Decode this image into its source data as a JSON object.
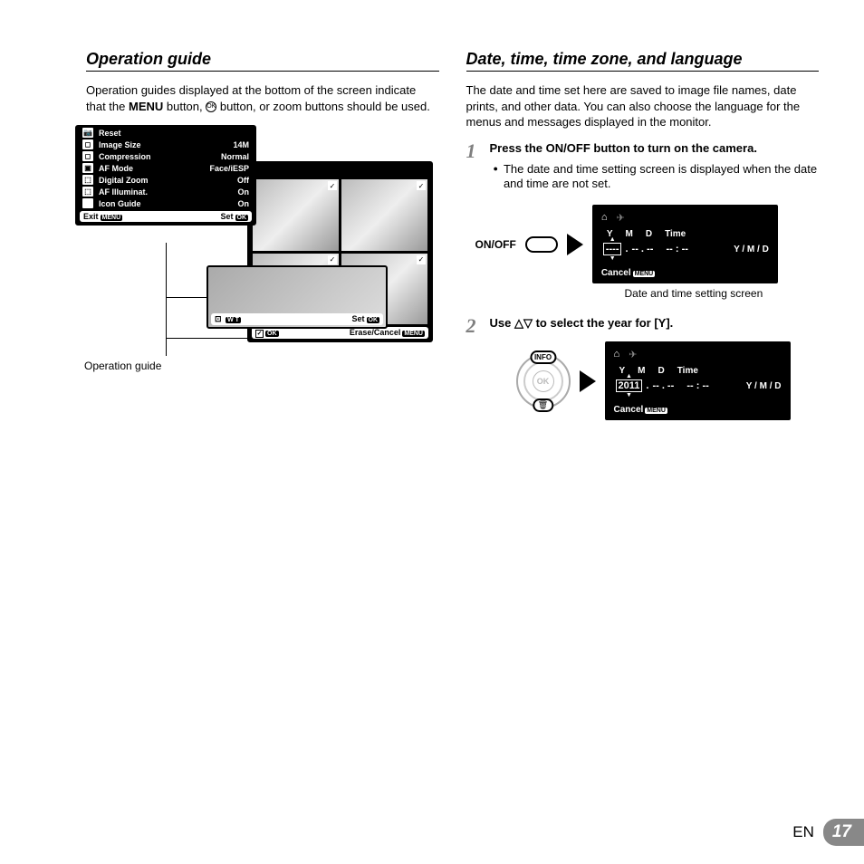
{
  "left": {
    "heading": "Operation guide",
    "intro_pre": "Operation guides displayed at the bottom of the screen indicate that the ",
    "menu_word": "MENU",
    "intro_mid": " button, ",
    "ok_glyph": "OK",
    "intro_post": " button, or zoom buttons should be used.",
    "menu": {
      "rows": [
        {
          "icon": "📷",
          "label": "Reset",
          "val": ""
        },
        {
          "icon": "◻",
          "label": "Image Size",
          "val": "14M"
        },
        {
          "icon": "◻",
          "label": "Compression",
          "val": "Normal"
        },
        {
          "icon": "▣",
          "label": "AF Mode",
          "val": "Face/iESP"
        },
        {
          "icon": "⬚",
          "label": "Digital Zoom",
          "val": "Off"
        },
        {
          "icon": "⬚",
          "label": "AF Illuminat.",
          "val": "On"
        },
        {
          "icon": "",
          "label": "Icon Guide",
          "val": "On"
        }
      ],
      "exit": "Exit",
      "set": "Set",
      "menu_tag": "MENU",
      "ok_tag": "OK"
    },
    "thumbs1": {
      "left_icon": "⊡",
      "wt": "W T",
      "set": "Set",
      "ok": "OK"
    },
    "thumbs2": {
      "ok_left": "OK",
      "erase": "Erase/Cancel",
      "menu": "MENU"
    },
    "caption": "Operation guide"
  },
  "right": {
    "heading": "Date, time, time zone, and language",
    "intro": "The date and time set here are saved to image file names, date prints, and other data. You can also choose the language for the menus and messages displayed in the monitor.",
    "step1": {
      "num": "1",
      "title_pre": "Press the ",
      "onoff": "ON/OFF",
      "title_post": " button to turn on the camera.",
      "bullet": "The date and time setting screen is displayed when the date and time are not set.",
      "onoff_label": "ON/OFF",
      "screen": {
        "y": "Y",
        "m": "M",
        "d": "D",
        "time": "Time",
        "year": "----",
        "md": "-- . --",
        "hm": "-- : --",
        "fmt": "Y / M / D",
        "cancel": "Cancel",
        "menu": "MENU"
      },
      "caption": "Date and time setting screen"
    },
    "step2": {
      "num": "2",
      "title_pre": "Use ",
      "arrows": "△▽",
      "title_post": " to select the year for [Y].",
      "info": "INFO",
      "ok": "OK",
      "trash": "🗑",
      "screen": {
        "y": "Y",
        "m": "M",
        "d": "D",
        "time": "Time",
        "year": "2011",
        "md": "-- . --",
        "hm": "-- : --",
        "fmt": "Y / M / D",
        "cancel": "Cancel",
        "menu": "MENU"
      }
    }
  },
  "footer": {
    "lang": "EN",
    "page": "17"
  }
}
